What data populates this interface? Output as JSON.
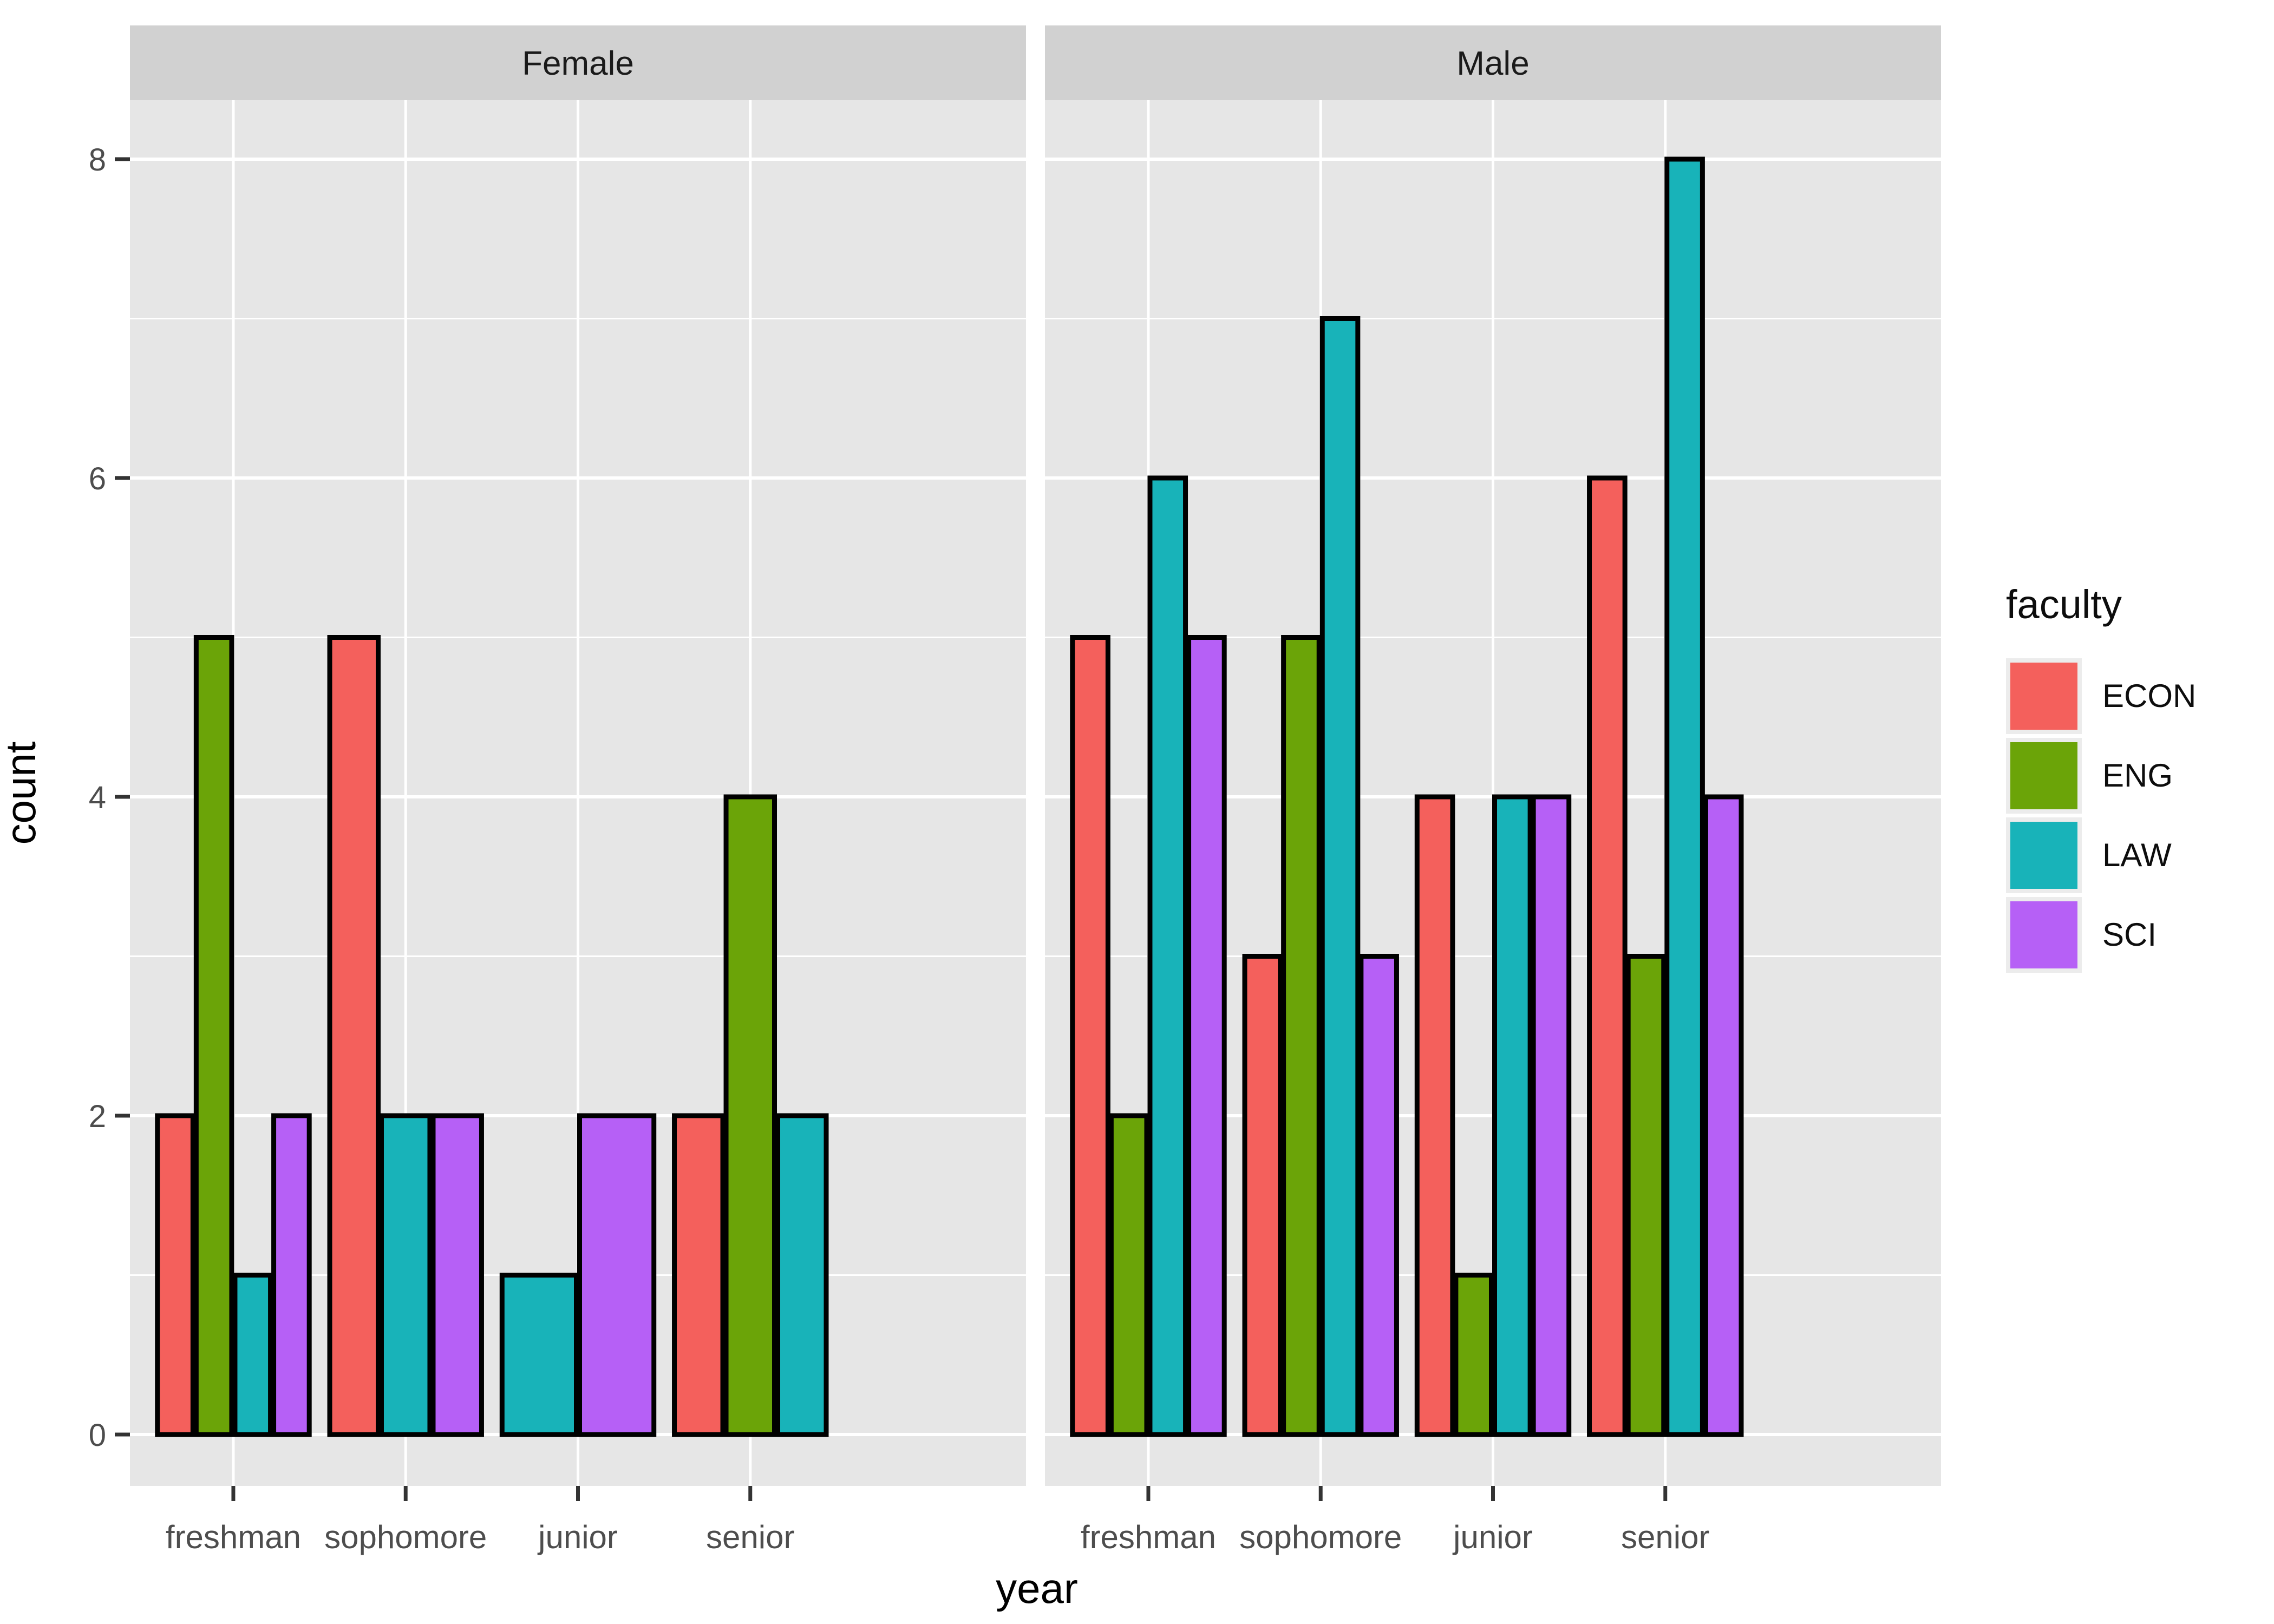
{
  "figure": {
    "x_axis_title": "year",
    "y_axis_title": "count",
    "y_tick_labels": [
      "0",
      "2",
      "4",
      "6",
      "8"
    ],
    "facet_labels": [
      "Female",
      "Male"
    ]
  },
  "legend": {
    "title": "faculty",
    "entries": [
      {
        "label": "ECON",
        "color": "#f4605c"
      },
      {
        "label": "ENG",
        "color": "#6ba408"
      },
      {
        "label": "LAW",
        "color": "#18b3b9"
      },
      {
        "label": "SCI",
        "color": "#b660f6"
      }
    ]
  },
  "chart_data": {
    "type": "bar",
    "mode": "grouped-dodged-faceted",
    "title": "",
    "xlabel": "year",
    "ylabel": "count",
    "categories": [
      "freshman",
      "sophomore",
      "junior",
      "senior"
    ],
    "facets": [
      {
        "label": "Female",
        "series": [
          {
            "name": "ECON",
            "values": [
              2,
              5,
              null,
              2
            ]
          },
          {
            "name": "ENG",
            "values": [
              5,
              null,
              null,
              4
            ]
          },
          {
            "name": "LAW",
            "values": [
              1,
              2,
              1,
              2
            ]
          },
          {
            "name": "SCI",
            "values": [
              2,
              2,
              2,
              null
            ]
          }
        ]
      },
      {
        "label": "Male",
        "series": [
          {
            "name": "ECON",
            "values": [
              5,
              3,
              4,
              6
            ]
          },
          {
            "name": "ENG",
            "values": [
              2,
              5,
              1,
              3
            ]
          },
          {
            "name": "LAW",
            "values": [
              6,
              7,
              4,
              8
            ]
          },
          {
            "name": "SCI",
            "values": [
              5,
              3,
              4,
              4
            ]
          }
        ]
      }
    ],
    "series_colors": {
      "ECON": "#f4605c",
      "ENG": "#6ba408",
      "LAW": "#18b3b9",
      "SCI": "#b660f6"
    },
    "bar_outline_color": "#000000",
    "y_ticks": [
      0,
      2,
      4,
      6,
      8
    ],
    "y_minor_ticks": [
      1,
      3,
      5,
      7
    ],
    "ylim": [
      -0.35,
      8.45
    ],
    "grid": true,
    "legend_position": "right",
    "legend_title": "faculty"
  },
  "theme": {
    "panel_background": "#e6e6e6",
    "strip_background": "#d1d1d1",
    "strip_text_color": "#1a1a1a",
    "grid_color": "#ffffff",
    "tick_label_color": "#4d4d4d",
    "tick_mark_color": "#333333",
    "axis_title_color": "#000000"
  }
}
